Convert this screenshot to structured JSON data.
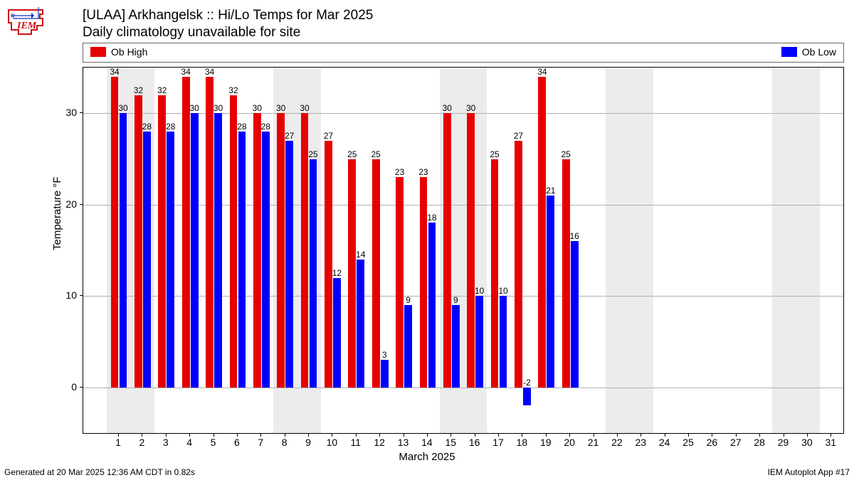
{
  "logo": {
    "text": "IEM",
    "color": "#d01016"
  },
  "title": {
    "line1": "[ULAA] Arkhangelsk :: Hi/Lo Temps for Mar 2025",
    "line2": "Daily climatology unavailable for site"
  },
  "legend": {
    "items": [
      {
        "label": "Ob High",
        "color": "#e60000",
        "pos": "left"
      },
      {
        "label": "Ob Low",
        "color": "#0000ff",
        "pos": "right"
      }
    ]
  },
  "chart": {
    "type": "bar",
    "xlim": [
      -0.5,
      31.5
    ],
    "ylim": [
      -5,
      35
    ],
    "yticks": [
      0,
      10,
      20,
      30
    ],
    "xticks": [
      1,
      2,
      3,
      4,
      5,
      6,
      7,
      8,
      9,
      10,
      11,
      12,
      13,
      14,
      15,
      16,
      17,
      18,
      19,
      20,
      21,
      22,
      23,
      24,
      25,
      26,
      27,
      28,
      29,
      30,
      31
    ],
    "xlabel": "March 2025",
    "ylabel": "Temperature °F",
    "background_color": "#ffffff",
    "band_color": "#ececec",
    "grid_color": "#b0b0b0",
    "weekend_bands": [
      [
        0.5,
        2.5
      ],
      [
        7.5,
        9.5
      ],
      [
        14.5,
        16.5
      ],
      [
        21.5,
        23.5
      ],
      [
        28.5,
        30.5
      ]
    ],
    "bar_halfwidth": 0.32,
    "series": [
      {
        "name": "Ob High",
        "color": "#e60000",
        "offset": -0.18,
        "values": [
          34,
          32,
          32,
          34,
          34,
          32,
          30,
          30,
          30,
          27,
          25,
          25,
          23,
          23,
          30,
          30,
          25,
          27,
          34,
          25
        ]
      },
      {
        "name": "Ob Low",
        "color": "#0000ff",
        "offset": 0.18,
        "values": [
          30,
          28,
          28,
          30,
          30,
          28,
          28,
          27,
          25,
          12,
          14,
          3,
          9,
          18,
          9,
          10,
          10,
          -2,
          21,
          16
        ]
      }
    ],
    "label_fontsize": 12
  },
  "footer": {
    "left": "Generated at 20 Mar 2025 12:36 AM CDT in 0.82s",
    "right": "IEM Autoplot App #17"
  }
}
